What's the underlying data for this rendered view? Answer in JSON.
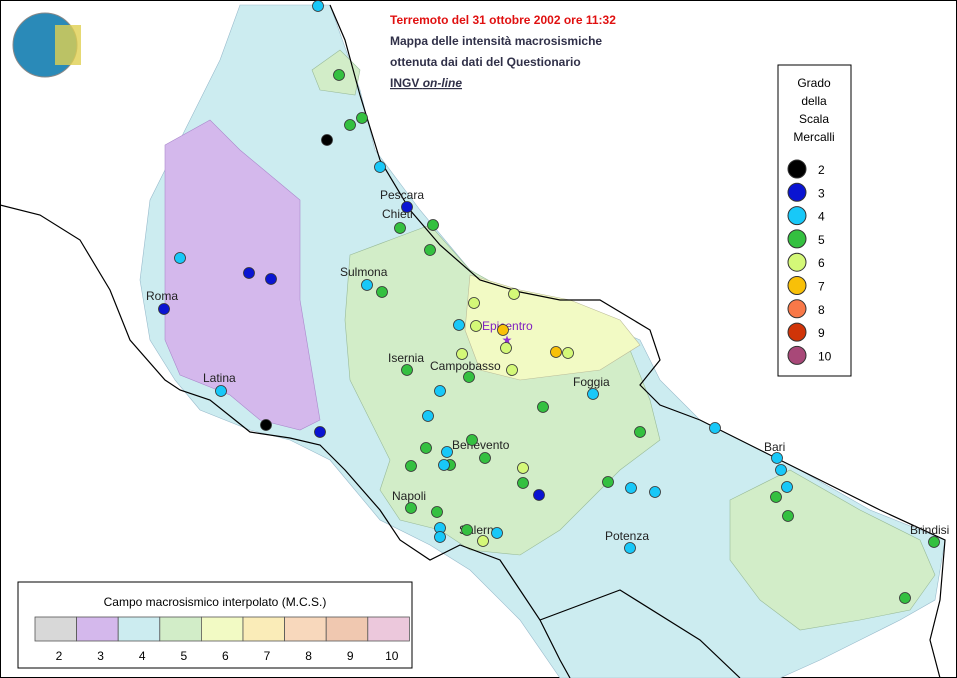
{
  "title": {
    "line1": "Terremoto del 31 ottobre 2002 ore 11:32",
    "line2": "Mappa delle intensità macrosismiche",
    "line3": "ottenuta dai dati del Questionario",
    "line4_a": "INGV",
    "line4_b": "on-line"
  },
  "legend": {
    "title": [
      "Grado",
      "della",
      "Scala",
      "Mercalli"
    ],
    "items": [
      {
        "grade": 2,
        "color": "#000000"
      },
      {
        "grade": 3,
        "color": "#0a14d2"
      },
      {
        "grade": 4,
        "color": "#18c8f8"
      },
      {
        "grade": 5,
        "color": "#34c040"
      },
      {
        "grade": 6,
        "color": "#d4f878"
      },
      {
        "grade": 7,
        "color": "#f8c008"
      },
      {
        "grade": 8,
        "color": "#f87848"
      },
      {
        "grade": 9,
        "color": "#d03408"
      },
      {
        "grade": 10,
        "color": "#a84878"
      }
    ]
  },
  "field_legend": {
    "title": "Campo macrosismico interpolato (M.C.S.)",
    "levels": [
      {
        "grade": 2,
        "color": "#d8d8d8"
      },
      {
        "grade": 3,
        "color": "#d4b8ec"
      },
      {
        "grade": 4,
        "color": "#ccecf0"
      },
      {
        "grade": 5,
        "color": "#d2edc8"
      },
      {
        "grade": 6,
        "color": "#f2fac4"
      },
      {
        "grade": 7,
        "color": "#faecb8"
      },
      {
        "grade": 8,
        "color": "#f8d8bc"
      },
      {
        "grade": 9,
        "color": "#f0c8b0"
      },
      {
        "grade": 10,
        "color": "#ecc8dc"
      }
    ]
  },
  "places": [
    "Pescara",
    "Chieti",
    "Sulmona",
    "Roma",
    "Isernia",
    "Campobasso",
    "Foggia",
    "Latina",
    "Benevento",
    "Napoli",
    "Salerno",
    "Potenza",
    "Bari",
    "Brindisi",
    "Epicentro"
  ],
  "observations": [
    4,
    5,
    5,
    5,
    2,
    4,
    3,
    5,
    5,
    5,
    4,
    3,
    3,
    3,
    4,
    5,
    6,
    6,
    4,
    6,
    7,
    6,
    6,
    6,
    7,
    6,
    5,
    5,
    4,
    5,
    4,
    4,
    4,
    2,
    3,
    5,
    4,
    5,
    5,
    5,
    4,
    5,
    6,
    5,
    3,
    5,
    4,
    4,
    5,
    4,
    4,
    4,
    4,
    5,
    5,
    5,
    5,
    4,
    4,
    5,
    4,
    6,
    4,
    5,
    5
  ]
}
